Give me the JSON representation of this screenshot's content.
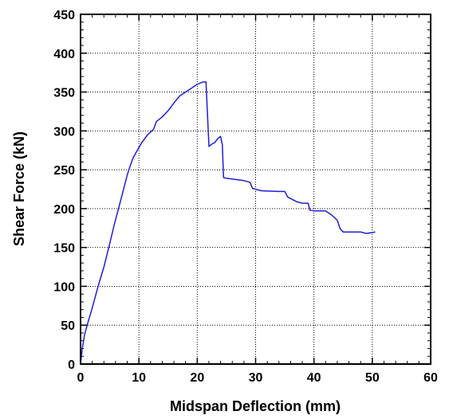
{
  "chart_data": {
    "type": "line",
    "title": "",
    "xlabel": "Midspan Deflection (mm)",
    "ylabel": "Shear Force (kN)",
    "xlim": [
      0,
      60
    ],
    "ylim": [
      0,
      450
    ],
    "xticks": [
      "0",
      "10",
      "20",
      "30",
      "40",
      "50",
      "60"
    ],
    "yticks": [
      "0",
      "50",
      "100",
      "150",
      "200",
      "250",
      "300",
      "350",
      "400",
      "450"
    ],
    "grid": true,
    "line_color": "#1f1fd6",
    "series": [
      {
        "x": [
          0,
          0.3,
          0.7,
          1.2,
          2,
          3,
          4,
          5,
          5.8,
          6.5,
          7.2,
          8,
          8.5,
          9,
          9.5,
          10.5,
          11.5,
          12.5,
          13,
          14,
          15,
          16,
          17,
          18,
          19,
          20,
          21,
          21.5,
          22,
          22.5,
          23,
          23.5,
          24,
          24.3,
          24.5,
          25,
          27,
          28,
          29,
          29.5,
          31,
          34,
          35,
          35.5,
          37,
          38,
          39,
          39.3,
          40,
          42,
          43,
          44,
          44.5,
          45,
          46,
          47,
          48,
          49,
          50.5
        ],
        "y": [
          0,
          20,
          38,
          52,
          72,
          100,
          125,
          155,
          180,
          200,
          220,
          243,
          255,
          265,
          272,
          285,
          295,
          302,
          312,
          318,
          326,
          336,
          345,
          350,
          355,
          360,
          363,
          363,
          280,
          283,
          285,
          290,
          293,
          282,
          240,
          239,
          237,
          236,
          234,
          226,
          223,
          222,
          222,
          215,
          209,
          207,
          207,
          198,
          197,
          197,
          192,
          185,
          174,
          170,
          170,
          170,
          170,
          168,
          170
        ]
      }
    ]
  }
}
